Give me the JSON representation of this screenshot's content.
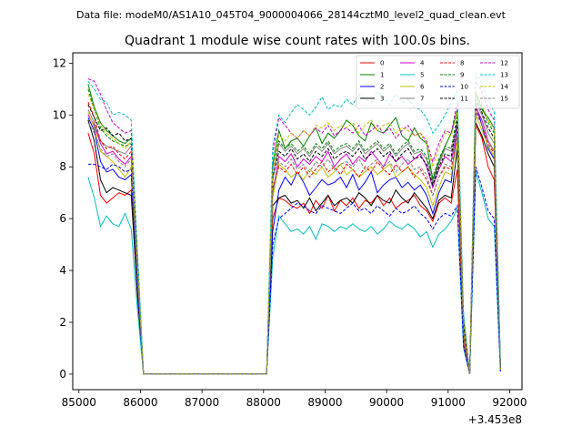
{
  "chart_data": {
    "type": "line",
    "suptitle": "Data file: modeM0/AS1A10_045T04_9000004066_28144cztM0_level2_quad_clean.evt",
    "title": "Quadrant 1 module wise count rates with 100.0s bins.",
    "xlabel": "",
    "ylabel": "",
    "x_offset_label": "+3.453e8",
    "xlim": [
      84900,
      92200
    ],
    "ylim": [
      -0.6,
      12.4
    ],
    "xticks": [
      85000,
      86000,
      87000,
      88000,
      89000,
      90000,
      91000,
      92000
    ],
    "xtick_labels": [
      "85000",
      "86000",
      "87000",
      "88000",
      "89000",
      "90000",
      "91000",
      "92000"
    ],
    "yticks": [
      0,
      2,
      4,
      6,
      8,
      10,
      12
    ],
    "ytick_labels": [
      "0",
      "2",
      "4",
      "6",
      "8",
      "10",
      "12"
    ],
    "legend_position": "top-right",
    "x": [
      85150,
      85250,
      85350,
      85450,
      85550,
      85650,
      85750,
      85850,
      85950,
      86050,
      86150,
      86250,
      86350,
      86450,
      86550,
      86650,
      86750,
      86850,
      86950,
      87050,
      87150,
      87250,
      87350,
      87450,
      87550,
      87650,
      87750,
      87850,
      87950,
      88050,
      88150,
      88250,
      88350,
      88450,
      88550,
      88650,
      88750,
      88850,
      88950,
      89050,
      89150,
      89250,
      89350,
      89450,
      89550,
      89650,
      89750,
      89850,
      89950,
      90050,
      90150,
      90250,
      90350,
      90450,
      90550,
      90650,
      90750,
      90850,
      90950,
      91050,
      91150,
      91250,
      91350,
      91450,
      91550,
      91650,
      91750,
      91850
    ],
    "series": [
      {
        "name": "0",
        "color": "#ff0000",
        "dash": "solid",
        "values": [
          9.3,
          8.5,
          6.9,
          6.6,
          6.8,
          7.0,
          6.9,
          7.1,
          3.0,
          0,
          0,
          0,
          0,
          0,
          0,
          0,
          0,
          0,
          0,
          0,
          0,
          0,
          0,
          0,
          0,
          0,
          0,
          0,
          0,
          0,
          6.0,
          6.8,
          6.7,
          6.5,
          6.4,
          6.6,
          6.2,
          6.7,
          6.4,
          6.9,
          6.3,
          6.7,
          6.5,
          6.8,
          6.4,
          6.7,
          6.6,
          6.9,
          6.5,
          6.8,
          6.4,
          6.6,
          6.7,
          6.9,
          6.5,
          6.3,
          5.9,
          6.6,
          6.8,
          6.6,
          7.9,
          1.2,
          0.0,
          9.6,
          9.1,
          8.0,
          7.5,
          0.2
        ]
      },
      {
        "name": "1",
        "color": "#008000",
        "dash": "solid",
        "values": [
          11.2,
          10.3,
          9.7,
          9.4,
          9.2,
          9.0,
          8.9,
          9.1,
          4.5,
          0,
          0,
          0,
          0,
          0,
          0,
          0,
          0,
          0,
          0,
          0,
          0,
          0,
          0,
          0,
          0,
          0,
          0,
          0,
          0,
          0,
          8.1,
          9.4,
          8.7,
          9.0,
          9.1,
          8.8,
          9.2,
          9.5,
          8.9,
          9.3,
          9.1,
          9.4,
          9.8,
          9.6,
          9.2,
          9.0,
          9.7,
          9.4,
          9.3,
          9.6,
          9.9,
          9.2,
          9.0,
          9.5,
          9.1,
          8.9,
          7.5,
          8.2,
          8.8,
          9.3,
          10.2,
          2.0,
          0.0,
          10.8,
          10.2,
          9.9,
          9.5,
          0.3
        ]
      },
      {
        "name": "2",
        "color": "#0000ff",
        "dash": "solid",
        "values": [
          9.9,
          9.4,
          8.2,
          7.8,
          7.9,
          7.6,
          7.5,
          7.7,
          3.5,
          0,
          0,
          0,
          0,
          0,
          0,
          0,
          0,
          0,
          0,
          0,
          0,
          0,
          0,
          0,
          0,
          0,
          0,
          0,
          0,
          0,
          5.5,
          7.1,
          7.6,
          7.3,
          7.8,
          7.4,
          6.9,
          7.2,
          7.5,
          7.3,
          7.4,
          7.6,
          7.2,
          7.7,
          7.1,
          7.4,
          7.8,
          7.0,
          7.3,
          7.5,
          7.6,
          7.2,
          7.4,
          7.1,
          7.3,
          6.9,
          6.2,
          7.0,
          7.5,
          7.4,
          9.6,
          2.2,
          0.0,
          10.4,
          9.6,
          8.7,
          8.3,
          0.3
        ]
      },
      {
        "name": "3",
        "color": "#000000",
        "dash": "solid",
        "values": [
          9.8,
          9.0,
          7.5,
          7.0,
          7.2,
          7.1,
          7.0,
          6.9,
          3.2,
          0,
          0,
          0,
          0,
          0,
          0,
          0,
          0,
          0,
          0,
          0,
          0,
          0,
          0,
          0,
          0,
          0,
          0,
          0,
          0,
          0,
          6.5,
          6.8,
          6.9,
          6.6,
          6.7,
          6.4,
          6.8,
          6.3,
          6.6,
          6.9,
          6.5,
          6.7,
          6.8,
          6.6,
          7.0,
          6.8,
          6.5,
          6.9,
          6.7,
          6.6,
          7.1,
          6.8,
          6.6,
          7.0,
          6.7,
          6.4,
          6.0,
          6.7,
          6.9,
          6.8,
          8.7,
          1.5,
          0.0,
          9.7,
          9.2,
          8.5,
          8.0,
          0.2
        ]
      },
      {
        "name": "4",
        "color": "#cc00cc",
        "dash": "solid",
        "values": [
          10.0,
          9.6,
          8.9,
          8.5,
          8.6,
          8.3,
          8.1,
          8.4,
          3.8,
          0,
          0,
          0,
          0,
          0,
          0,
          0,
          0,
          0,
          0,
          0,
          0,
          0,
          0,
          0,
          0,
          0,
          0,
          0,
          0,
          0,
          7.0,
          8.4,
          8.2,
          8.5,
          8.0,
          8.3,
          8.1,
          8.4,
          8.2,
          8.6,
          8.0,
          8.3,
          8.5,
          8.1,
          8.4,
          8.2,
          8.6,
          8.3,
          8.0,
          8.5,
          8.2,
          8.4,
          8.1,
          8.3,
          8.5,
          8.0,
          7.2,
          7.9,
          8.4,
          8.2,
          9.5,
          1.8,
          0.0,
          10.3,
          9.8,
          9.0,
          8.6,
          0.3
        ]
      },
      {
        "name": "5",
        "color": "#00bfbf",
        "dash": "solid",
        "values": [
          7.6,
          6.8,
          5.7,
          6.1,
          5.8,
          5.7,
          6.2,
          5.6,
          2.5,
          0,
          0,
          0,
          0,
          0,
          0,
          0,
          0,
          0,
          0,
          0,
          0,
          0,
          0,
          0,
          0,
          0,
          0,
          0,
          0,
          0,
          4.5,
          6.1,
          5.8,
          5.5,
          5.6,
          5.4,
          5.7,
          5.2,
          5.8,
          5.7,
          5.5,
          5.7,
          5.6,
          5.8,
          5.6,
          5.5,
          5.7,
          5.4,
          5.6,
          5.9,
          5.7,
          5.6,
          5.8,
          5.6,
          5.3,
          5.5,
          4.9,
          5.4,
          5.6,
          5.9,
          6.4,
          1.0,
          0.0,
          7.8,
          7.0,
          6.0,
          5.7,
          0.1
        ]
      },
      {
        "name": "6",
        "color": "#bfbf00",
        "dash": "solid",
        "values": [
          10.1,
          9.5,
          8.6,
          8.4,
          8.2,
          7.9,
          7.6,
          8.0,
          3.7,
          0,
          0,
          0,
          0,
          0,
          0,
          0,
          0,
          0,
          0,
          0,
          0,
          0,
          0,
          0,
          0,
          0,
          0,
          0,
          0,
          0,
          6.8,
          8.1,
          7.9,
          7.6,
          7.8,
          7.5,
          7.9,
          7.7,
          8.0,
          7.6,
          7.8,
          8.1,
          7.7,
          7.9,
          7.6,
          7.8,
          8.0,
          7.7,
          7.9,
          8.1,
          7.6,
          7.8,
          8.0,
          7.7,
          7.5,
          7.2,
          6.5,
          7.2,
          7.8,
          7.7,
          9.0,
          1.6,
          0.0,
          10.0,
          9.4,
          8.8,
          8.4,
          0.2
        ]
      },
      {
        "name": "7",
        "color": "#808080",
        "dash": "solid",
        "values": [
          10.2,
          9.7,
          9.0,
          8.8,
          8.7,
          8.6,
          8.5,
          8.8,
          4.0,
          0,
          0,
          0,
          0,
          0,
          0,
          0,
          0,
          0,
          0,
          0,
          0,
          0,
          0,
          0,
          0,
          0,
          0,
          0,
          0,
          0,
          7.5,
          8.9,
          8.6,
          8.8,
          8.5,
          8.7,
          8.4,
          8.8,
          8.6,
          8.9,
          8.5,
          8.7,
          8.8,
          8.6,
          8.9,
          8.5,
          8.7,
          8.9,
          8.6,
          8.8,
          8.4,
          8.7,
          8.9,
          8.5,
          8.6,
          8.3,
          7.4,
          8.1,
          8.7,
          8.6,
          9.7,
          1.9,
          0.0,
          10.5,
          10.0,
          9.3,
          8.9,
          0.3
        ]
      },
      {
        "name": "8",
        "color": "#ff0000",
        "dash": "dashed",
        "values": [
          10.5,
          9.9,
          9.0,
          8.7,
          8.8,
          8.5,
          8.3,
          8.6,
          3.9,
          0,
          0,
          0,
          0,
          0,
          0,
          0,
          0,
          0,
          0,
          0,
          0,
          0,
          0,
          0,
          0,
          0,
          0,
          0,
          0,
          0,
          7.2,
          8.0,
          7.8,
          8.1,
          7.7,
          8.0,
          7.6,
          7.9,
          8.2,
          7.8,
          8.0,
          7.7,
          8.1,
          7.9,
          7.6,
          8.0,
          7.8,
          8.2,
          7.9,
          7.7,
          8.1,
          7.8,
          8.0,
          7.6,
          7.9,
          7.5,
          6.9,
          7.6,
          8.0,
          7.9,
          9.2,
          1.7,
          0.0,
          10.2,
          9.6,
          8.9,
          8.5,
          0.2
        ]
      },
      {
        "name": "9",
        "color": "#008000",
        "dash": "dashed",
        "values": [
          11.0,
          10.2,
          9.5,
          9.2,
          9.0,
          8.9,
          8.8,
          8.9,
          4.3,
          0,
          0,
          0,
          0,
          0,
          0,
          0,
          0,
          0,
          0,
          0,
          0,
          0,
          0,
          0,
          0,
          0,
          0,
          0,
          0,
          0,
          7.9,
          9.0,
          8.7,
          8.9,
          8.6,
          8.8,
          8.5,
          8.9,
          8.7,
          9.0,
          8.6,
          8.8,
          8.9,
          8.7,
          9.0,
          8.6,
          8.8,
          9.0,
          8.7,
          8.9,
          8.5,
          8.8,
          9.0,
          8.6,
          8.7,
          8.4,
          7.6,
          8.3,
          8.8,
          8.7,
          10.0,
          2.0,
          0.0,
          10.9,
          10.3,
          9.7,
          9.3,
          0.3
        ]
      },
      {
        "name": "10",
        "color": "#0000ff",
        "dash": "dashed",
        "values": [
          8.1,
          8.1,
          8.0,
          7.9,
          8.1,
          8.0,
          7.8,
          7.9,
          3.3,
          0,
          0,
          0,
          0,
          0,
          0,
          0,
          0,
          0,
          0,
          0,
          0,
          0,
          0,
          0,
          0,
          0,
          0,
          0,
          0,
          0,
          5.0,
          6.0,
          6.2,
          6.4,
          6.6,
          6.5,
          6.3,
          6.2,
          6.5,
          6.4,
          6.3,
          6.2,
          6.4,
          6.6,
          6.3,
          6.4,
          6.2,
          6.5,
          6.3,
          6.1,
          6.4,
          6.2,
          6.3,
          6.5,
          6.2,
          6.0,
          5.6,
          6.0,
          6.2,
          6.1,
          6.5,
          1.1,
          0.0,
          8.0,
          7.2,
          6.3,
          6.0,
          0.1
        ]
      },
      {
        "name": "11",
        "color": "#000000",
        "dash": "dashed",
        "values": [
          10.4,
          9.9,
          9.4,
          9.5,
          9.2,
          9.3,
          9.0,
          9.1,
          4.1,
          0,
          0,
          0,
          0,
          0,
          0,
          0,
          0,
          0,
          0,
          0,
          0,
          0,
          0,
          0,
          0,
          0,
          0,
          0,
          0,
          0,
          7.6,
          8.6,
          8.4,
          8.7,
          8.3,
          8.5,
          8.2,
          8.6,
          8.4,
          8.7,
          8.3,
          8.5,
          8.6,
          8.4,
          8.7,
          8.3,
          8.5,
          8.7,
          8.4,
          8.6,
          8.2,
          8.5,
          8.7,
          8.3,
          8.4,
          8.1,
          7.3,
          8.0,
          8.5,
          8.4,
          9.8,
          1.9,
          0.0,
          10.6,
          10.1,
          9.5,
          9.1,
          0.3
        ]
      },
      {
        "name": "12",
        "color": "#cc00cc",
        "dash": "dashed",
        "values": [
          11.4,
          11.3,
          10.8,
          10.2,
          9.7,
          9.5,
          9.3,
          9.4,
          4.6,
          0,
          0,
          0,
          0,
          0,
          0,
          0,
          0,
          0,
          0,
          0,
          0,
          0,
          0,
          0,
          0,
          0,
          0,
          0,
          0,
          0,
          8.5,
          9.9,
          9.6,
          9.3,
          9.1,
          9.4,
          9.2,
          9.5,
          9.3,
          9.6,
          9.2,
          9.4,
          9.5,
          9.3,
          9.6,
          9.2,
          9.4,
          9.6,
          9.3,
          9.5,
          9.1,
          9.4,
          9.6,
          9.2,
          9.3,
          9.0,
          8.2,
          8.9,
          9.4,
          9.3,
          10.5,
          2.2,
          0.0,
          11.3,
          10.9,
          10.2,
          9.8,
          0.4
        ]
      },
      {
        "name": "13",
        "color": "#00bfbf",
        "dash": "dashed",
        "values": [
          11.3,
          11.0,
          10.6,
          10.5,
          10.0,
          10.1,
          10.0,
          9.8,
          4.8,
          0,
          0,
          0,
          0,
          0,
          0,
          0,
          0,
          0,
          0,
          0,
          0,
          0,
          0,
          0,
          0,
          0,
          0,
          0,
          0,
          0,
          8.8,
          10.0,
          9.7,
          10.1,
          10.4,
          10.2,
          10.0,
          10.3,
          10.7,
          10.2,
          10.4,
          10.3,
          10.6,
          10.4,
          10.8,
          10.6,
          10.5,
          10.9,
          10.7,
          10.4,
          10.8,
          10.5,
          10.6,
          10.3,
          10.2,
          9.9,
          9.3,
          9.6,
          10.0,
          10.5,
          10.9,
          2.4,
          0.0,
          11.6,
          11.2,
          10.6,
          10.1,
          0.4
        ]
      },
      {
        "name": "14",
        "color": "#bfbf00",
        "dash": "dashed",
        "values": [
          10.8,
          10.2,
          9.6,
          9.3,
          9.1,
          8.9,
          8.7,
          9.0,
          4.2,
          0,
          0,
          0,
          0,
          0,
          0,
          0,
          0,
          0,
          0,
          0,
          0,
          0,
          0,
          0,
          0,
          0,
          0,
          0,
          0,
          0,
          7.8,
          9.2,
          9.0,
          9.3,
          9.1,
          9.4,
          9.2,
          9.6,
          9.5,
          9.7,
          9.4,
          9.6,
          9.5,
          9.7,
          9.3,
          9.6,
          9.8,
          9.4,
          9.6,
          9.7,
          9.3,
          9.5,
          9.4,
          9.2,
          9.3,
          8.9,
          8.0,
          8.7,
          9.3,
          9.2,
          10.1,
          2.1,
          0.0,
          10.9,
          10.4,
          9.8,
          9.4,
          0.3
        ]
      },
      {
        "name": "15",
        "color": "#808080",
        "dash": "dashed",
        "values": [
          9.7,
          9.3,
          8.7,
          8.4,
          8.5,
          8.2,
          8.0,
          8.3,
          3.8,
          0,
          0,
          0,
          0,
          0,
          0,
          0,
          0,
          0,
          0,
          0,
          0,
          0,
          0,
          0,
          0,
          0,
          0,
          0,
          0,
          0,
          7.0,
          8.2,
          8.0,
          8.3,
          7.9,
          8.1,
          7.8,
          8.2,
          8.0,
          8.3,
          7.9,
          8.1,
          8.2,
          8.0,
          8.3,
          7.9,
          8.1,
          8.3,
          8.0,
          8.2,
          7.8,
          8.1,
          8.3,
          7.9,
          8.0,
          7.7,
          6.9,
          7.6,
          8.1,
          8.0,
          9.3,
          1.7,
          0.0,
          10.1,
          9.6,
          9.0,
          8.6,
          0.2
        ]
      }
    ]
  }
}
